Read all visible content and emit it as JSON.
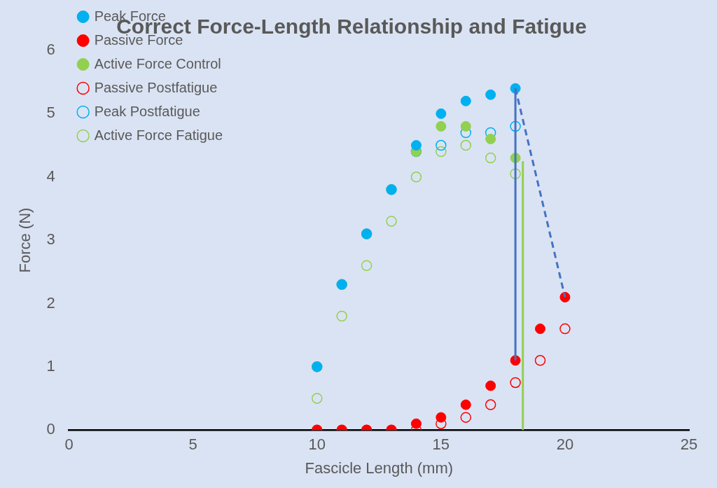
{
  "chart_data": {
    "type": "scatter",
    "title": "Correct Force-Length Relationship and Fatigue",
    "x_label": "Fascicle Length (mm)",
    "y_label": "Force (N)",
    "xlim": [
      0,
      25
    ],
    "xticks": [
      0,
      5,
      10,
      15,
      20,
      25
    ],
    "ylim": [
      0,
      6
    ],
    "yticks": [
      0,
      1,
      2,
      3,
      4,
      5,
      6
    ],
    "grid": false,
    "legend": "top-left",
    "series": [
      {
        "name": "Peak Force",
        "color": "#00b0f0",
        "marker": "circle",
        "x": [
          10,
          11,
          12,
          13,
          14,
          15,
          16,
          17,
          18
        ],
        "values": [
          1.0,
          2.3,
          3.1,
          3.8,
          4.5,
          5.0,
          5.2,
          5.3,
          5.4
        ]
      },
      {
        "name": "Passive Force",
        "color": "#ff0000",
        "marker": "circle",
        "x": [
          10,
          11,
          12,
          13,
          14,
          15,
          16,
          17,
          18,
          19,
          20
        ],
        "values": [
          0,
          0,
          0,
          0,
          0.1,
          0.2,
          0.4,
          0.7,
          1.1,
          1.6,
          2.1
        ]
      },
      {
        "name": "Active Force Control",
        "color": "#92d050",
        "marker": "circle",
        "x": [
          10,
          11,
          12,
          13,
          14,
          15,
          16,
          17,
          18
        ],
        "values": [
          1.0,
          2.3,
          3.1,
          3.8,
          4.4,
          4.8,
          4.8,
          4.6,
          4.3
        ]
      },
      {
        "name": "Passive Postfatigue",
        "color": "#ff0000",
        "marker": "open-circle",
        "x": [
          10,
          11,
          12,
          13,
          14,
          15,
          16,
          17,
          18,
          19,
          20
        ],
        "values": [
          0,
          0,
          0,
          0,
          0,
          0.1,
          0.2,
          0.4,
          0.75,
          1.1,
          1.6
        ]
      },
      {
        "name": "Peak Postfatigue",
        "color": "#00b0f0",
        "marker": "open-circle",
        "x": [
          10,
          11,
          12,
          13,
          14,
          15,
          16,
          17,
          18
        ],
        "values": [
          1.0,
          2.3,
          3.1,
          3.8,
          4.4,
          4.5,
          4.7,
          4.7,
          4.8
        ]
      },
      {
        "name": "Active Force Fatigue",
        "color": "#92d050",
        "marker": "open-circle",
        "x": [
          10,
          11,
          12,
          13,
          14,
          15,
          16,
          17,
          18
        ],
        "values": [
          0.5,
          1.8,
          2.6,
          3.3,
          4.0,
          4.4,
          4.5,
          4.3,
          4.05
        ]
      }
    ],
    "lines": [
      {
        "color": "#4472c4",
        "line_style": "solid",
        "x": [
          18,
          18
        ],
        "values": [
          5.4,
          1.1
        ]
      },
      {
        "color": "#4472c4",
        "line_style": "dashed",
        "x": [
          18,
          20
        ],
        "values": [
          5.4,
          2.1
        ]
      },
      {
        "color": "#92d050",
        "line_style": "solid",
        "x": [
          18.3,
          18.3
        ],
        "values": [
          4.25,
          0
        ]
      }
    ]
  }
}
